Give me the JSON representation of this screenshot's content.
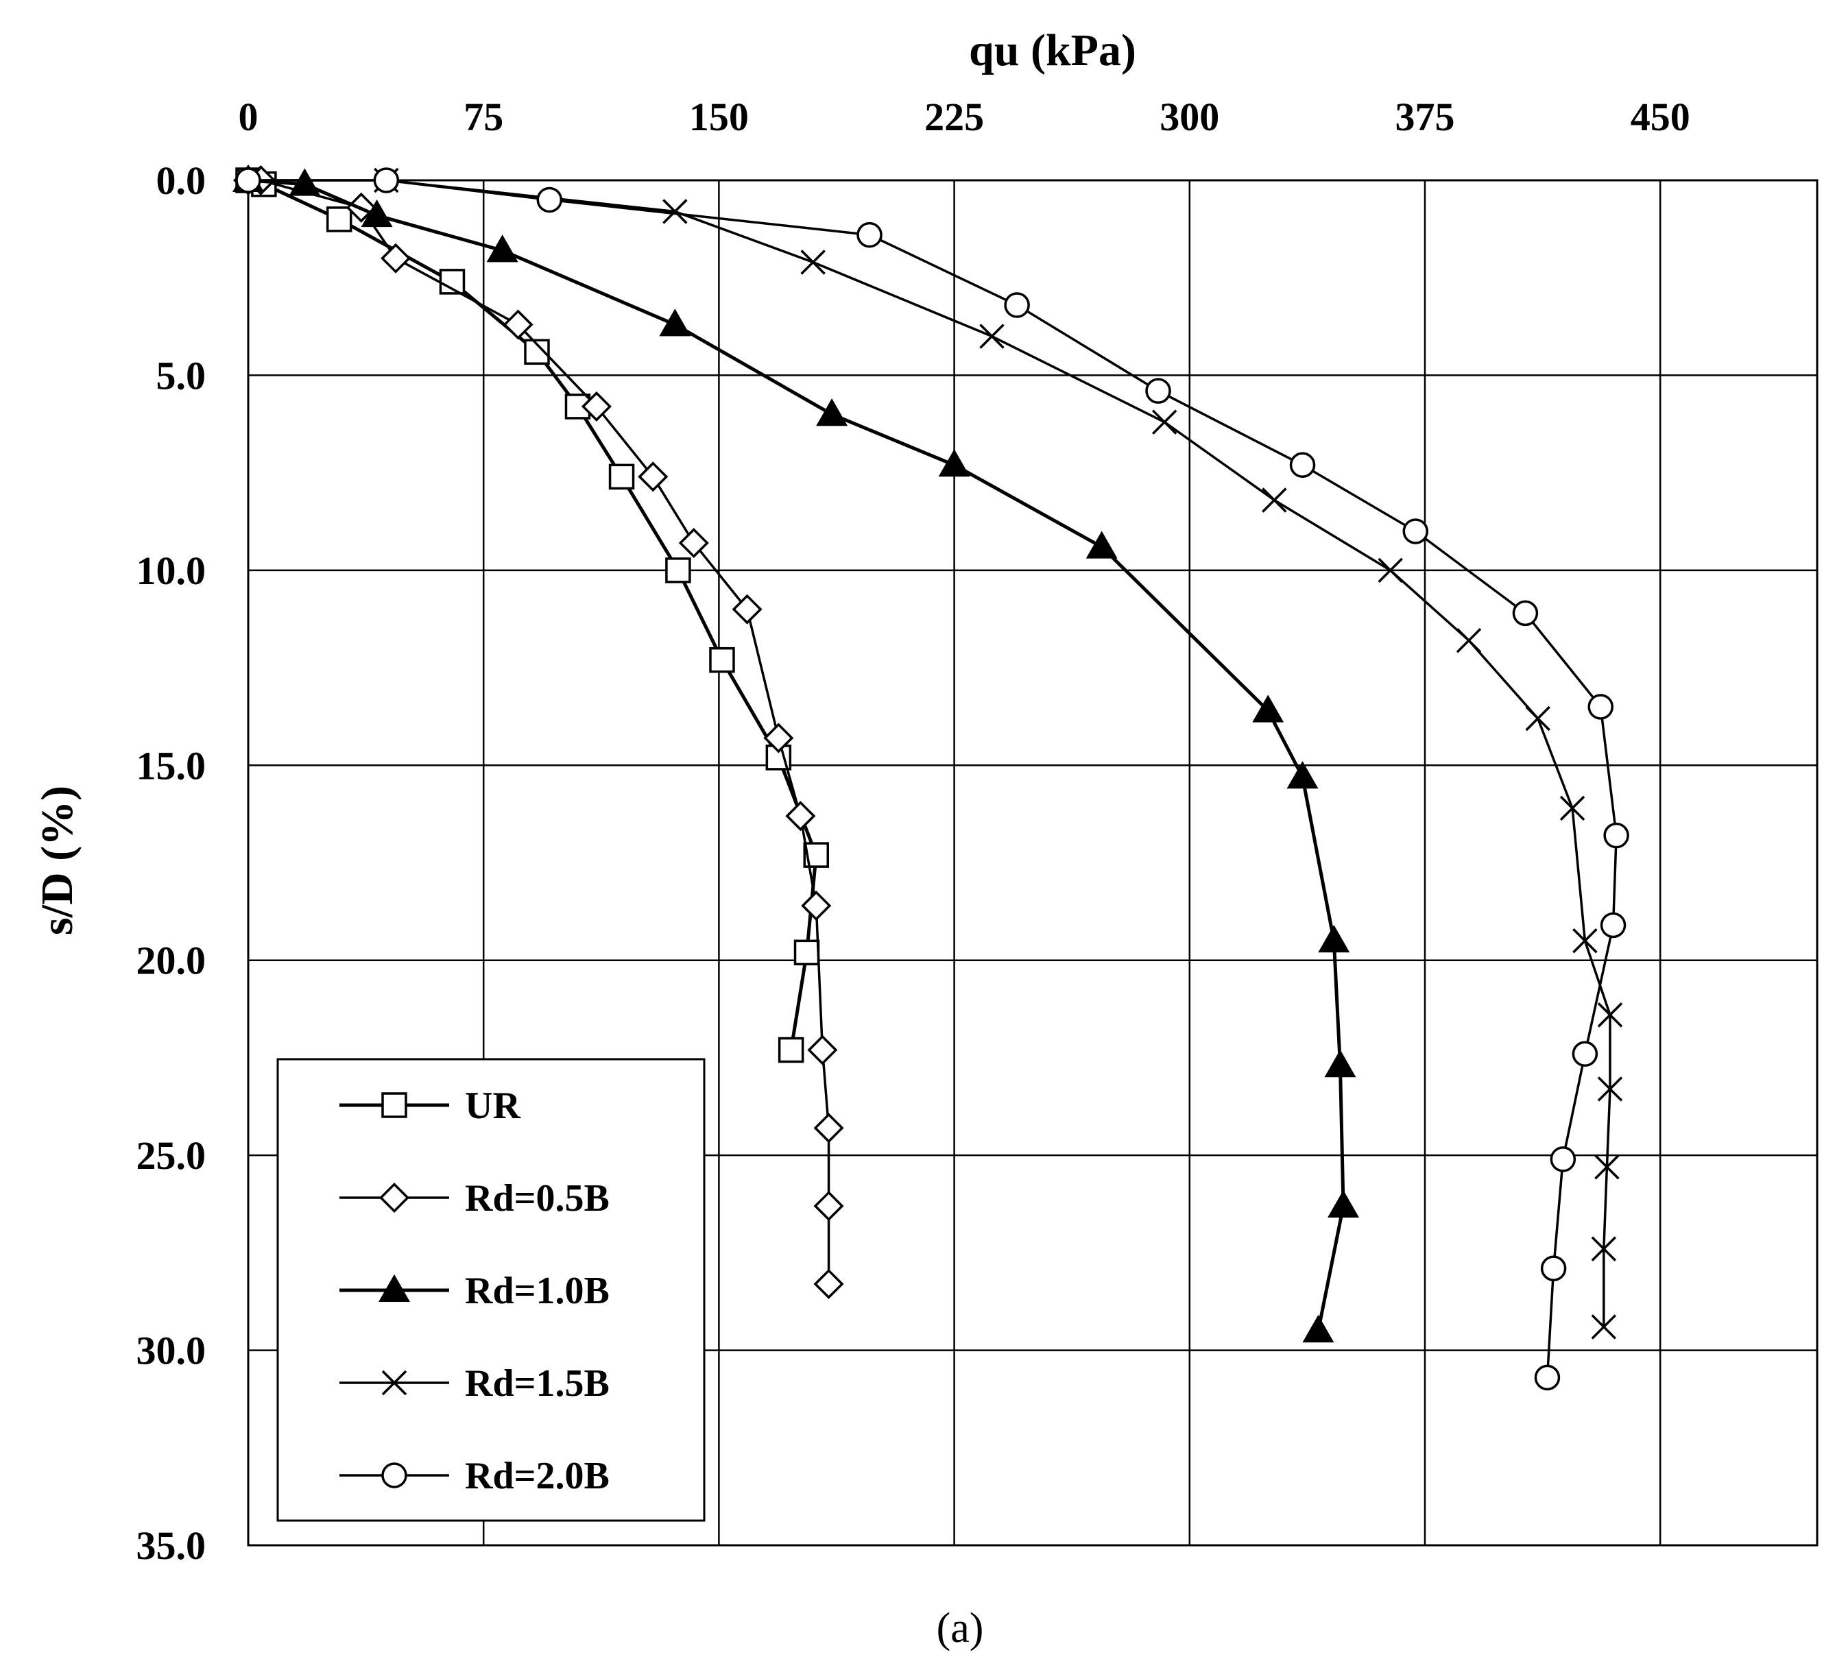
{
  "chart_data": {
    "type": "line",
    "title": "",
    "xlabel": "qu (kPa)",
    "ylabel": "s/D (%)",
    "xlim": [
      0,
      500
    ],
    "ylim": [
      0,
      35
    ],
    "x_axis_position": "top",
    "y_axis_inverted": true,
    "x_ticks": [
      0,
      75,
      150,
      225,
      300,
      375,
      450
    ],
    "x_tick_labels": [
      "0",
      "75",
      "150",
      "225",
      "300",
      "375",
      "450"
    ],
    "y_ticks": [
      0,
      5,
      10,
      15,
      20,
      25,
      30,
      35
    ],
    "y_tick_labels": [
      "0.0",
      "5.0",
      "10.0",
      "15.0",
      "20.0",
      "25.0",
      "30.0",
      "35.0"
    ],
    "grid": true,
    "legend_position": "bottom-left",
    "caption": "(a)",
    "series": [
      {
        "name": "UR",
        "marker": "square",
        "points": [
          [
            0,
            0
          ],
          [
            5,
            0.1
          ],
          [
            29,
            1
          ],
          [
            65,
            2.6
          ],
          [
            92,
            4.4
          ],
          [
            105,
            5.8
          ],
          [
            119,
            7.6
          ],
          [
            137,
            10
          ],
          [
            151,
            12.3
          ],
          [
            169,
            14.8
          ],
          [
            181,
            17.3
          ],
          [
            178,
            19.8
          ],
          [
            173,
            22.3
          ]
        ]
      },
      {
        "name": "Rd=0.5B",
        "marker": "diamond",
        "points": [
          [
            0,
            0
          ],
          [
            4,
            0
          ],
          [
            36,
            0.7
          ],
          [
            47,
            2
          ],
          [
            86,
            3.7
          ],
          [
            111,
            5.8
          ],
          [
            129,
            7.6
          ],
          [
            142,
            9.3
          ],
          [
            159,
            11
          ],
          [
            169,
            14.3
          ],
          [
            176,
            16.3
          ],
          [
            181,
            18.6
          ],
          [
            183,
            22.3
          ],
          [
            185,
            24.3
          ],
          [
            185,
            26.3
          ],
          [
            185,
            28.3
          ]
        ]
      },
      {
        "name": "Rd=1.0B",
        "marker": "triangle",
        "points": [
          [
            0,
            0
          ],
          [
            18,
            0.1
          ],
          [
            41,
            0.9
          ],
          [
            81,
            1.8
          ],
          [
            136,
            3.7
          ],
          [
            186,
            6
          ],
          [
            225,
            7.3
          ],
          [
            272,
            9.4
          ],
          [
            325,
            13.6
          ],
          [
            336,
            15.3
          ],
          [
            346,
            19.5
          ],
          [
            348,
            22.7
          ],
          [
            349,
            26.3
          ],
          [
            341,
            29.5
          ]
        ]
      },
      {
        "name": "Rd=1.5B",
        "marker": "x",
        "points": [
          [
            0,
            0
          ],
          [
            44,
            0
          ],
          [
            136,
            0.8
          ],
          [
            180,
            2.1
          ],
          [
            237,
            4
          ],
          [
            292,
            6.2
          ],
          [
            327,
            8.2
          ],
          [
            364,
            10
          ],
          [
            389,
            11.8
          ],
          [
            411,
            13.8
          ],
          [
            422,
            16.1
          ],
          [
            426,
            19.5
          ],
          [
            434,
            21.4
          ],
          [
            434,
            23.3
          ],
          [
            433,
            25.3
          ],
          [
            432,
            27.4
          ],
          [
            432,
            29.4
          ]
        ]
      },
      {
        "name": "Rd=2.0B",
        "marker": "circle",
        "points": [
          [
            0,
            0
          ],
          [
            44,
            0
          ],
          [
            96,
            0.5
          ],
          [
            198,
            1.4
          ],
          [
            245,
            3.2
          ],
          [
            290,
            5.4
          ],
          [
            336,
            7.3
          ],
          [
            372,
            9
          ],
          [
            407,
            11.1
          ],
          [
            431,
            13.5
          ],
          [
            436,
            16.8
          ],
          [
            435,
            19.1
          ],
          [
            426,
            22.4
          ],
          [
            419,
            25.1
          ],
          [
            416,
            27.9
          ],
          [
            414,
            30.7
          ]
        ]
      }
    ]
  }
}
